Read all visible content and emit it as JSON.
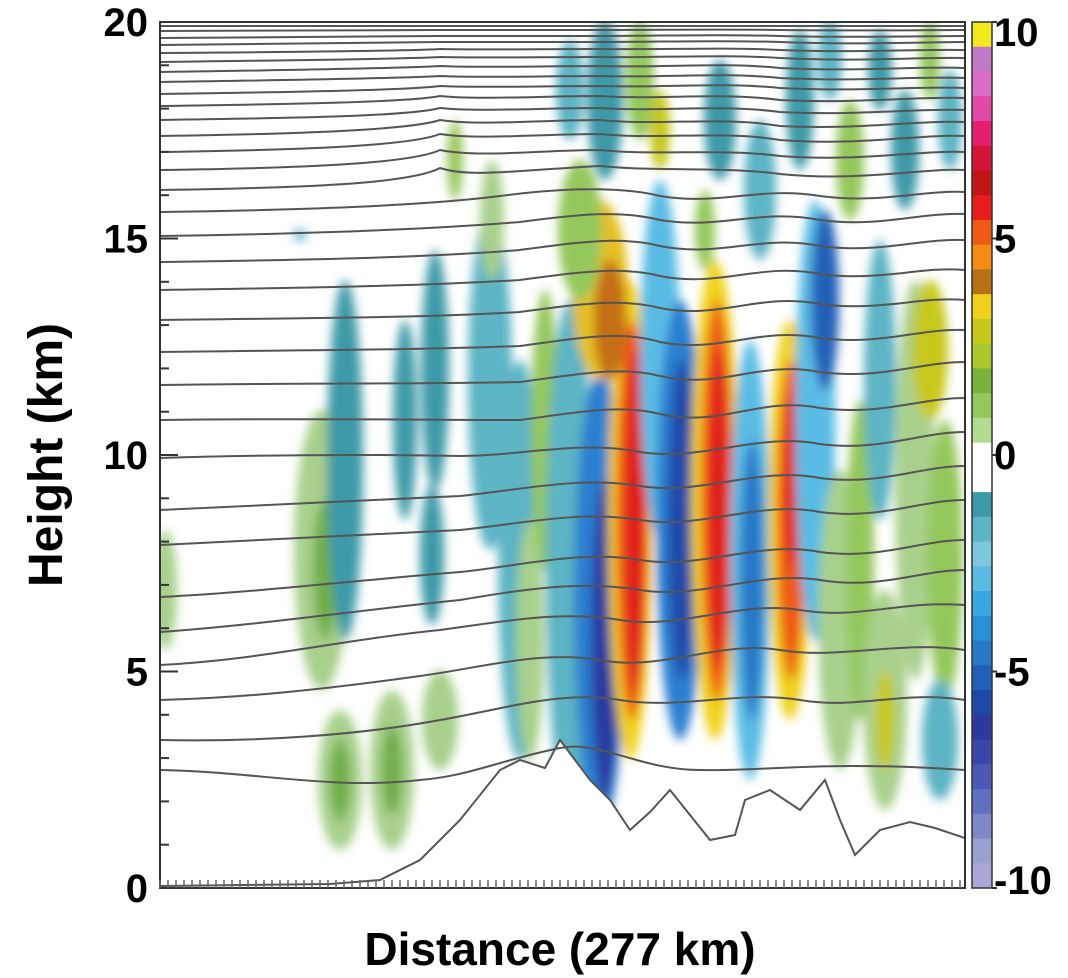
{
  "chart_data": {
    "type": "heatmap",
    "title": "",
    "xlabel": "Distance (277 km)",
    "ylabel": "Height (km)",
    "ylim": [
      0,
      20
    ],
    "y_ticks": [
      0,
      5,
      10,
      15,
      20
    ],
    "grid": false,
    "colorbar": {
      "placement": "right",
      "range": [
        -10,
        10
      ],
      "tick_values": [
        10,
        5,
        0,
        -5,
        -10
      ],
      "tick_labels": [
        "10",
        "5",
        "0",
        "-5",
        "-10"
      ],
      "colors_top_to_bottom": [
        "#f2ea1c",
        "#c079c6",
        "#d96cc5",
        "#e34aa6",
        "#e61e6f",
        "#d6143a",
        "#c21616",
        "#e81c1c",
        "#ee5a16",
        "#f28c14",
        "#b87015",
        "#f0d21c",
        "#c8c81c",
        "#a8c82c",
        "#78b43c",
        "#94c85c",
        "#b4dc90",
        "#ffffff",
        "#ffffff",
        "#3c9aa8",
        "#5cb4c4",
        "#7cc8dc",
        "#5abce4",
        "#3aa8e0",
        "#2890d4",
        "#2878c8",
        "#2060b8",
        "#1c48a8",
        "#2c3aa0",
        "#3a46a8",
        "#4c58b4",
        "#6070c0",
        "#8088c8",
        "#9aa0d0",
        "#a8a8d8"
      ]
    },
    "contours": "potential temperature isentropes (unlabeled)",
    "shaded_field": "vertical velocity, alternating positive/negative bands over terrain"
  }
}
